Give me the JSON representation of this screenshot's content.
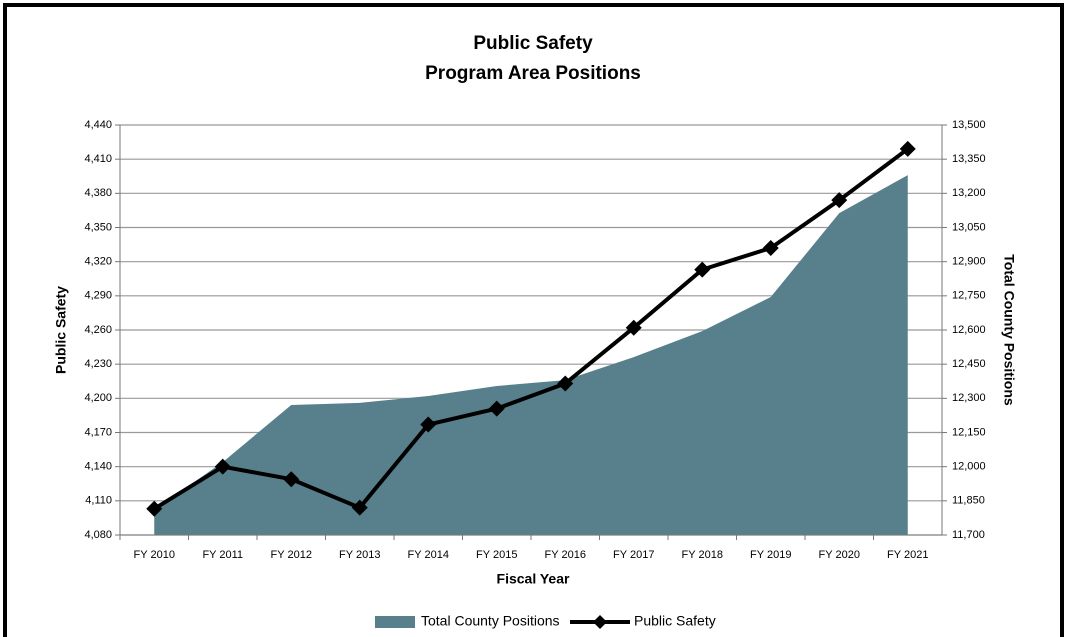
{
  "chart_data": {
    "type": "area_line",
    "title": "Public Safety",
    "subtitle": "Program Area Positions",
    "x_label": "Fiscal Year",
    "y_label": "Public Safety",
    "y2_label": "Total County Positions",
    "categories": [
      "FY 2010",
      "FY 2011",
      "FY 2012",
      "FY 2013",
      "FY 2014",
      "FY 2015",
      "FY 2016",
      "FY 2017",
      "FY 2018",
      "FY 2019",
      "FY 2020",
      "FY 2021"
    ],
    "series": [
      {
        "name": "Total County Positions",
        "type": "area",
        "axis": "y2",
        "color": "#57808c",
        "values": [
          11810,
          12020,
          12271,
          12280,
          12310,
          12354,
          12380,
          12481,
          12595,
          12745,
          13113,
          13280
        ]
      },
      {
        "name": "Public Safety",
        "type": "line",
        "color": "#000000",
        "values": [
          4103,
          4140,
          4129,
          4104,
          4177,
          4191,
          4213,
          4262,
          4313,
          4332,
          4374,
          4419
        ]
      }
    ],
    "ylim": [
      4080,
      4440
    ],
    "yticks": [
      {
        "value": 4080,
        "label": "4,080"
      },
      {
        "value": 4110,
        "label": "4,110"
      },
      {
        "value": 4140,
        "label": "4,140"
      },
      {
        "value": 4170,
        "label": "4,170"
      },
      {
        "value": 4200,
        "label": "4,200"
      },
      {
        "value": 4230,
        "label": "4,230"
      },
      {
        "value": 4260,
        "label": "4,260"
      },
      {
        "value": 4290,
        "label": "4,290"
      },
      {
        "value": 4320,
        "label": "4,320"
      },
      {
        "value": 4350,
        "label": "4,350"
      },
      {
        "value": 4380,
        "label": "4,380"
      },
      {
        "value": 4410,
        "label": "4,410"
      },
      {
        "value": 4440,
        "label": "4,440"
      }
    ],
    "y2lim": [
      11700,
      13500
    ],
    "y2ticks": [
      {
        "value": 11700,
        "label": "11,700"
      },
      {
        "value": 11850,
        "label": "11,850"
      },
      {
        "value": 12000,
        "label": "12,000"
      },
      {
        "value": 12150,
        "label": "12,150"
      },
      {
        "value": 12300,
        "label": "12,300"
      },
      {
        "value": 12450,
        "label": "12,450"
      },
      {
        "value": 12600,
        "label": "12,600"
      },
      {
        "value": 12750,
        "label": "12,750"
      },
      {
        "value": 12900,
        "label": "12,900"
      },
      {
        "value": 13050,
        "label": "13,050"
      },
      {
        "value": 13200,
        "label": "13,200"
      },
      {
        "value": 13350,
        "label": "13,350"
      },
      {
        "value": 13500,
        "label": "13,500"
      }
    ],
    "grid": true
  }
}
